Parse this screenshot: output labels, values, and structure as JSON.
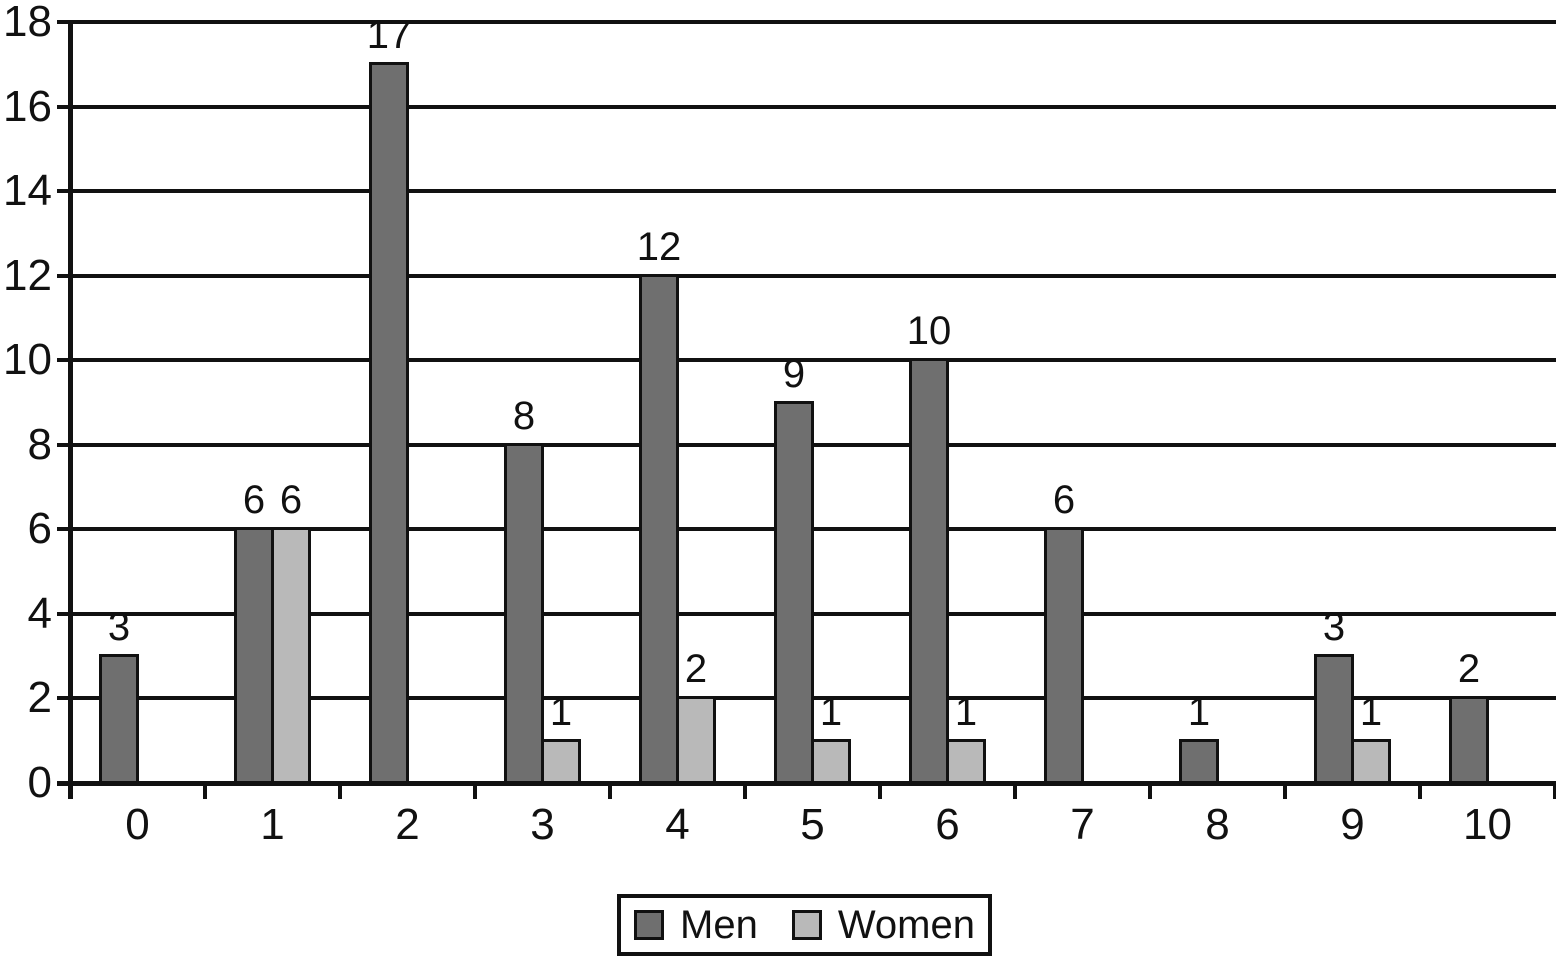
{
  "chart_data": {
    "type": "bar",
    "title": "",
    "xlabel": "",
    "ylabel": "",
    "categories": [
      "0",
      "1",
      "2",
      "3",
      "4",
      "5",
      "6",
      "7",
      "8",
      "9",
      "10"
    ],
    "series": [
      {
        "name": "Men",
        "color": "#6f6f6f",
        "values": [
          3,
          6,
          17,
          8,
          12,
          9,
          10,
          6,
          1,
          3,
          2
        ]
      },
      {
        "name": "Women",
        "color": "#b9b9b9",
        "values": [
          null,
          6,
          null,
          1,
          2,
          1,
          1,
          null,
          null,
          1,
          null
        ]
      }
    ],
    "ylim": [
      0,
      18
    ],
    "yticks": [
      0,
      2,
      4,
      6,
      8,
      10,
      12,
      14,
      16,
      18
    ],
    "grid": "horizontal",
    "bar_value_labels": true,
    "legend_position": "bottom",
    "line_color": "#111111",
    "background_color": "#ffffff"
  }
}
